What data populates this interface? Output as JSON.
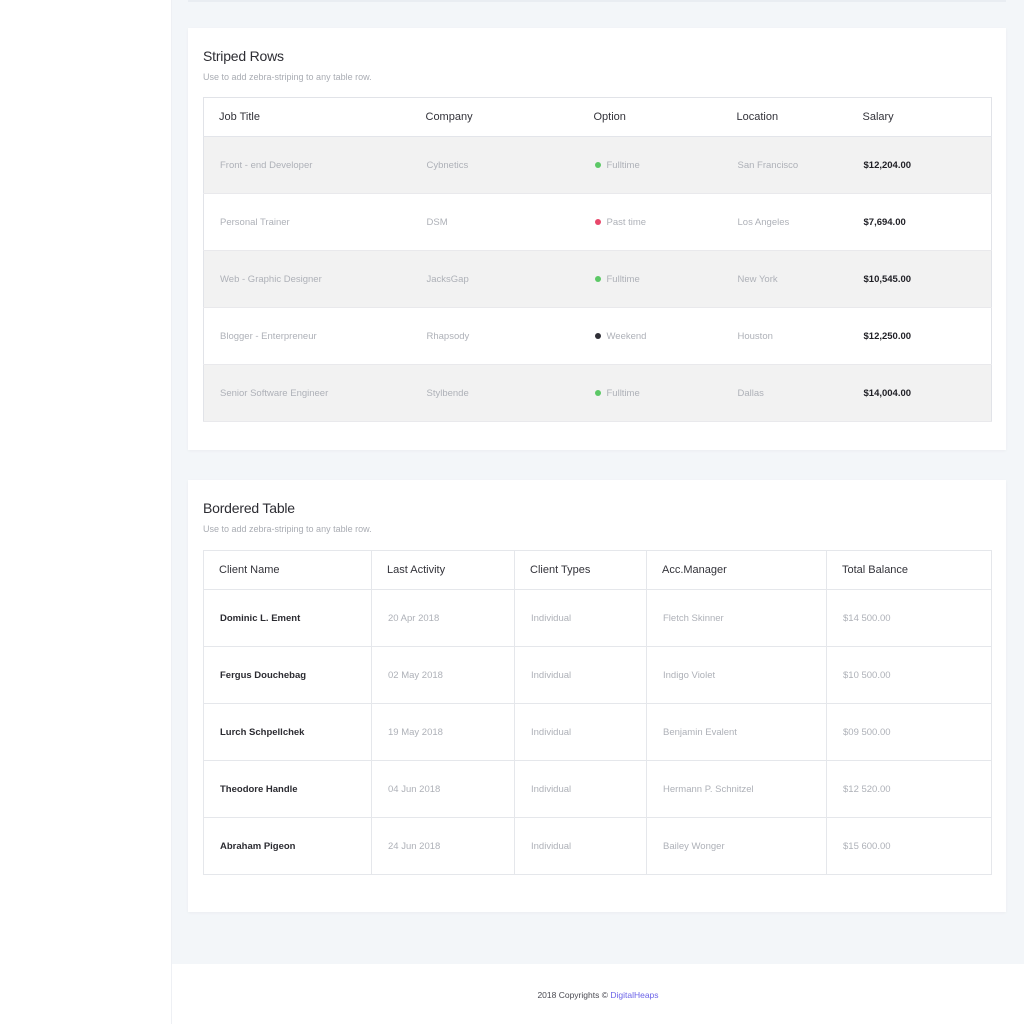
{
  "striped": {
    "title": "Striped Rows",
    "subtitle": "Use to add zebra-striping to any table row.",
    "headers": [
      "Job Title",
      "Company",
      "Option",
      "Location",
      "Salary"
    ],
    "rows": [
      {
        "title": "Front - end Developer",
        "company": "Cybnetics",
        "option": "Fulltime",
        "option_color": "#5cc866",
        "location": "San Francisco",
        "salary": "$12,204.00"
      },
      {
        "title": "Personal Trainer",
        "company": "DSM",
        "option": "Past time",
        "option_color": "#e8476a",
        "location": "Los Angeles",
        "salary": "$7,694.00"
      },
      {
        "title": "Web - Graphic Designer",
        "company": "JacksGap",
        "option": "Fulltime",
        "option_color": "#5cc866",
        "location": "New York",
        "salary": "$10,545.00"
      },
      {
        "title": "Blogger - Enterpreneur",
        "company": "Rhapsody",
        "option": "Weekend",
        "option_color": "#2f2f36",
        "location": "Houston",
        "salary": "$12,250.00"
      },
      {
        "title": "Senior Software Engineer",
        "company": "Stylbende",
        "option": "Fulltime",
        "option_color": "#5cc866",
        "location": "Dallas",
        "salary": "$14,004.00"
      }
    ]
  },
  "bordered": {
    "title": "Bordered Table",
    "subtitle": "Use to add zebra-striping to any table row.",
    "headers": [
      "Client Name",
      "Last Activity",
      "Client Types",
      "Acc.Manager",
      "Total Balance"
    ],
    "rows": [
      {
        "name": "Dominic L. Ement",
        "activity": "20 Apr 2018",
        "type": "Individual",
        "manager": "Fletch Skinner",
        "balance": "$14 500.00"
      },
      {
        "name": "Fergus Douchebag",
        "activity": "02 May 2018",
        "type": "Individual",
        "manager": "Indigo Violet",
        "balance": "$10 500.00"
      },
      {
        "name": "Lurch Schpellchek",
        "activity": "19 May 2018",
        "type": "Individual",
        "manager": "Benjamin Evalent",
        "balance": "$09 500.00"
      },
      {
        "name": "Theodore Handle",
        "activity": "04 Jun 2018",
        "type": "Individual",
        "manager": "Hermann P. Schnitzel",
        "balance": "$12 520.00"
      },
      {
        "name": "Abraham Pigeon",
        "activity": "24 Jun 2018",
        "type": "Individual",
        "manager": "Bailey Wonger",
        "balance": "$15 600.00"
      }
    ]
  },
  "footer": {
    "text": "2018 Copyrights ©",
    "brand": "DigitalHeaps",
    "brand_color": "#6b63e8"
  }
}
